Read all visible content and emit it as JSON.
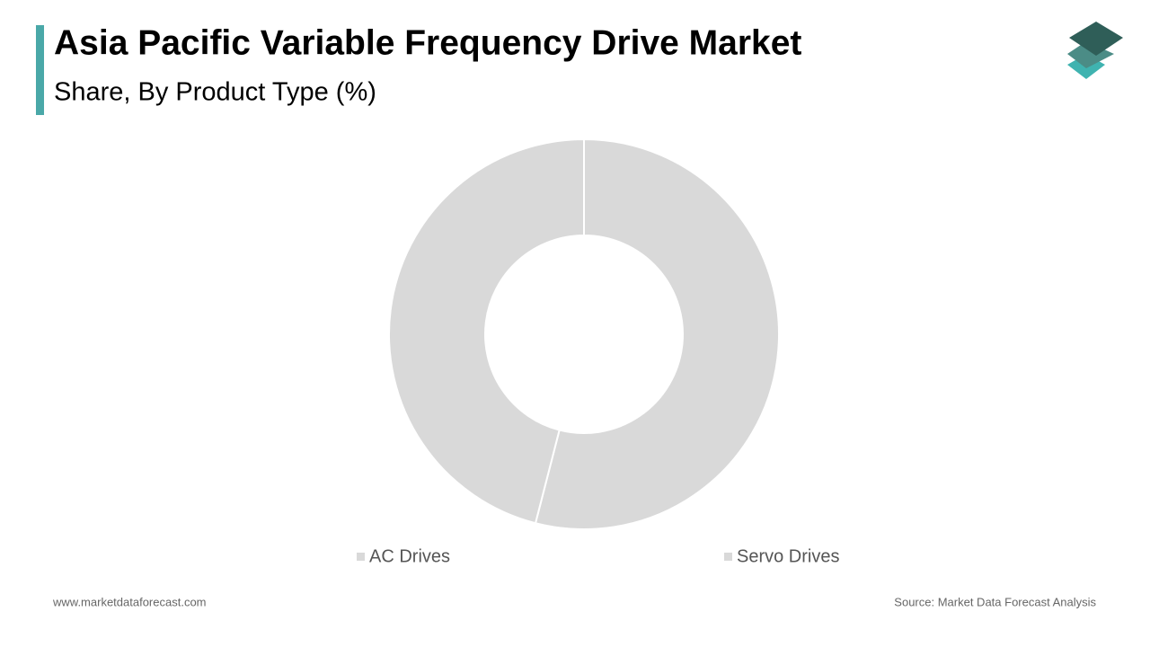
{
  "chart_data": {
    "type": "donut",
    "title": "Asia Pacific Variable Frequency Drive Market",
    "subtitle": "Share, By Product Type (%)",
    "categories": [
      "AC Drives",
      "Servo Drives"
    ],
    "values": [
      54,
      46
    ],
    "colors": [
      "#d9d9d9",
      "#d9d9d9"
    ]
  },
  "footer": {
    "website": "www.marketdataforecast.com",
    "source": "Source: Market Data Forecast Analysis"
  }
}
